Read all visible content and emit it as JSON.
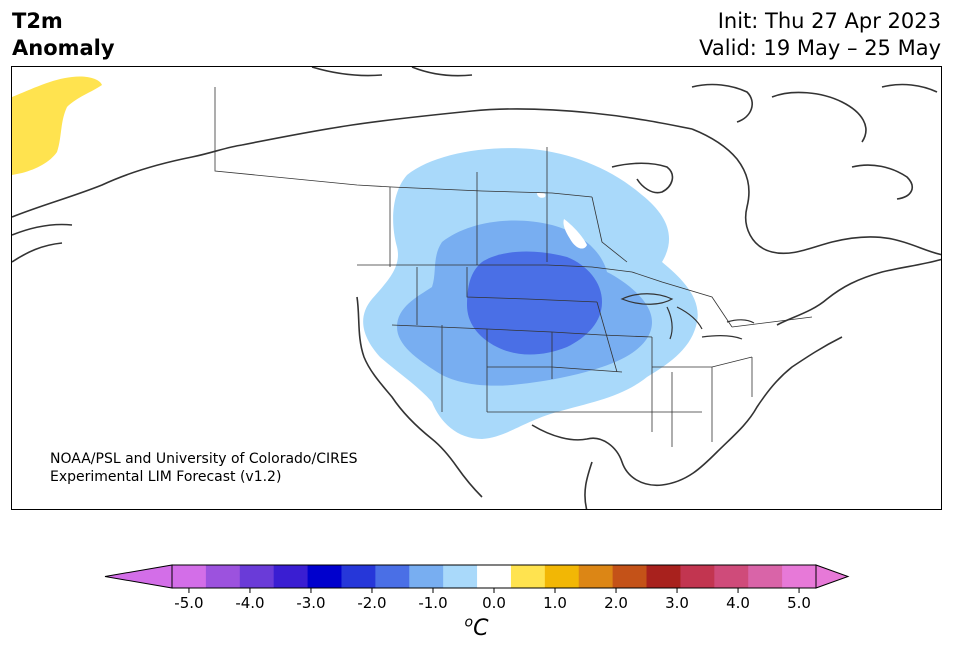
{
  "header": {
    "title_line1": "T2m",
    "title_line2": "Anomaly",
    "init": "Init: Thu 27 Apr 2023",
    "valid": "Valid: 19 May – 25 May"
  },
  "credit": {
    "line1": "NOAA/PSL and University of Colorado/CIRES",
    "line2": "Experimental LIM Forecast (v1.2)"
  },
  "colorbar": {
    "unit": "oC",
    "tick_labels": [
      "-5.0",
      "-4.0",
      "-3.0",
      "-2.0",
      "-1.0",
      "0.0",
      "1.0",
      "2.0",
      "3.0",
      "4.0",
      "5.0"
    ],
    "colors": [
      "#d36ee8",
      "#9c52de",
      "#6a3bd8",
      "#3a1ed2",
      "#0000cd",
      "#2637d9",
      "#4a6fe6",
      "#78aef1",
      "#a9d9fa",
      "#ffffff",
      "#ffe34f",
      "#f2b705",
      "#dc8615",
      "#c45218",
      "#a8211d",
      "#c23550",
      "#cf4b7a",
      "#d964a8",
      "#e779d8"
    ],
    "min_color": "#d36ee8",
    "max_color": "#e779d8"
  },
  "map": {
    "region": "North America",
    "anomaly_colors": {
      "light_blue": "#a9d9fa",
      "mid_blue": "#78aef1",
      "dark_blue": "#4a6fe6",
      "yellow": "#ffe34f"
    }
  }
}
